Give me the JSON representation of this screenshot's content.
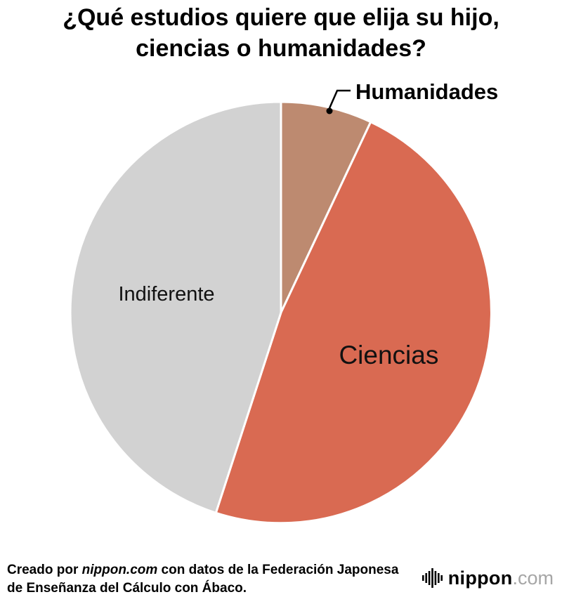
{
  "title": "¿Qué estudios quiere que elija su hijo, ciencias o humanidades?",
  "chart_data": {
    "type": "pie",
    "labels": [
      "Humanidades",
      "Ciencias",
      "Indiferente"
    ],
    "values": [
      7,
      48,
      45
    ],
    "unit": "percent (estimated from slice angles, no numeric labels shown)",
    "colors": [
      "#bd8a70",
      "#d96a52",
      "#d2d2d2"
    ],
    "start_angle_deg": 0,
    "direction": "clockwise",
    "label_placement": [
      "outside",
      "inside",
      "inside"
    ],
    "legend": "none",
    "title": "¿Qué estudios quiere que elija su hijo, ciencias o humanidades?"
  },
  "footer": {
    "credit_prefix": "Creado por ",
    "credit_source": "nippon.com",
    "credit_suffix": " con datos de la Federación Japonesa de Enseñanza del Cálculo con Ábaco.",
    "logo_text": "nippon",
    "logo_suffix": ".com"
  }
}
